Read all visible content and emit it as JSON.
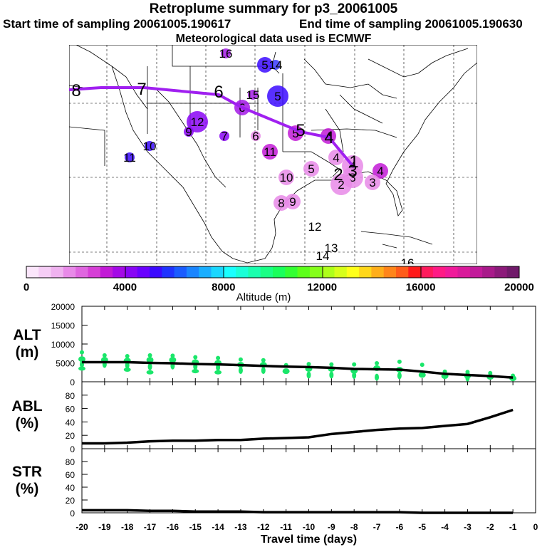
{
  "header": {
    "title": "Retroplume summary for p3_20061005",
    "start_label": "Start time of sampling 20061005.190617",
    "end_label": "End time of sampling 20061005.190630",
    "met_label": "Meteorological data used is ECMWF"
  },
  "colorbar": {
    "label": "Altitude (m)",
    "ticks": [
      "0",
      "4000",
      "8000",
      "12000",
      "16000",
      "20000"
    ],
    "range": [
      0,
      20000
    ],
    "colors": [
      "#fbe6fb",
      "#f5cdf5",
      "#efb2ef",
      "#e88ae8",
      "#df66df",
      "#d63fd6",
      "#c21ad6",
      "#a40ae6",
      "#8805f5",
      "#6a00ff",
      "#3b0aff",
      "#1f33ff",
      "#1a5cff",
      "#1a85ff",
      "#1aaeff",
      "#1ad7ff",
      "#1affff",
      "#1affd7",
      "#1affae",
      "#1aff85",
      "#1aff5c",
      "#33ff33",
      "#5cff1a",
      "#85ff1a",
      "#aeff1a",
      "#d7ff1a",
      "#ffff1a",
      "#ffd71a",
      "#ffae1a",
      "#ff851a",
      "#ff5c1a",
      "#ff1a1a",
      "#ff1a5c",
      "#ff1a85",
      "#f01a9a",
      "#d91a9a",
      "#c21a9a",
      "#a81a8a",
      "#8c1a7a",
      "#701a6a"
    ]
  },
  "map": {
    "track_color": "#a020f0",
    "track_labels": [
      "8",
      "7",
      "6",
      "5",
      "4",
      "3",
      "2",
      "1"
    ],
    "clusters": [
      {
        "label": "16",
        "color": "#a31ae6",
        "r": "s"
      },
      {
        "label": "15",
        "color": "#a31ae6",
        "r": "s"
      },
      {
        "label": "5",
        "color": "#3b0aff",
        "r": "m"
      },
      {
        "label": "14",
        "color": "#3b3bff",
        "r": "s"
      },
      {
        "label": "5",
        "color": "#3b0aff",
        "r": "l"
      },
      {
        "label": "6",
        "color": "#a31ae6",
        "r": "m"
      },
      {
        "label": "12",
        "color": "#8a05f5",
        "r": "l"
      },
      {
        "label": "9",
        "color": "#8a05f5",
        "r": "s"
      },
      {
        "label": "7",
        "color": "#8a05f5",
        "r": "s"
      },
      {
        "label": "6",
        "color": "#e88ae8",
        "r": "s"
      },
      {
        "label": "11",
        "color": "#c21ad6",
        "r": "m"
      },
      {
        "label": "5",
        "color": "#c21ad6",
        "r": "m"
      },
      {
        "label": "4",
        "color": "#c21ad6",
        "r": "m"
      },
      {
        "label": "10",
        "color": "#3b0aff",
        "r": "s"
      },
      {
        "label": "11",
        "color": "#3b0aff",
        "r": "s"
      },
      {
        "label": "4",
        "color": "#e88ae8",
        "r": "m"
      },
      {
        "label": "4",
        "color": "#c21ad6",
        "r": "m"
      },
      {
        "label": "4",
        "color": "#e88ae8",
        "r": "l"
      },
      {
        "label": "3",
        "color": "#e88ae8",
        "r": "l"
      },
      {
        "label": "3",
        "color": "#e88ae8",
        "r": "m"
      },
      {
        "label": "2",
        "color": "#e88ae8",
        "r": "l"
      },
      {
        "label": "10",
        "color": "#e88ae8",
        "r": "m"
      },
      {
        "label": "5",
        "color": "#e88ae8",
        "r": "m"
      },
      {
        "label": "8",
        "color": "#e88ae8",
        "r": "m"
      },
      {
        "label": "9",
        "color": "#e88ae8",
        "r": "m"
      },
      {
        "label": "12",
        "color": "none",
        "r": "s"
      },
      {
        "label": "13",
        "color": "none",
        "r": "s"
      },
      {
        "label": "14",
        "color": "none",
        "r": "s"
      },
      {
        "label": "16",
        "color": "none",
        "r": "s"
      }
    ]
  },
  "chart_data": [
    {
      "type": "line",
      "panel": "ALT",
      "ylabel": "ALT\n(m)",
      "ylabel_lines": [
        "ALT",
        "(m)"
      ],
      "ylim": [
        0,
        20000
      ],
      "yticks": [
        0,
        5000,
        10000,
        15000,
        20000
      ],
      "xlim": [
        -20,
        0
      ],
      "x": [
        -20,
        -19,
        -18,
        -17,
        -16,
        -15,
        -14,
        -13,
        -12,
        -11,
        -10,
        -9,
        -8,
        -7,
        -6,
        -5,
        -4,
        -3,
        -2,
        -1
      ],
      "values": [
        5200,
        5200,
        5200,
        5000,
        4900,
        4700,
        4600,
        4400,
        4200,
        4000,
        3900,
        3700,
        3400,
        3300,
        3200,
        2700,
        2100,
        1800,
        1500,
        1100
      ],
      "scatter": [
        {
          "x": -20,
          "y": [
            7800,
            6000,
            4600,
            3500
          ]
        },
        {
          "x": -19,
          "y": [
            7000,
            5800,
            4600
          ]
        },
        {
          "x": -18,
          "y": [
            6800,
            5600,
            4400,
            3200
          ]
        },
        {
          "x": -17,
          "y": [
            7000,
            5800,
            4000,
            2500
          ]
        },
        {
          "x": -16,
          "y": [
            6900,
            5800,
            4200
          ]
        },
        {
          "x": -15,
          "y": [
            6500,
            5200,
            4000,
            2800
          ]
        },
        {
          "x": -14,
          "y": [
            6300,
            5000,
            3800,
            2500
          ]
        },
        {
          "x": -13,
          "y": [
            5900,
            4500,
            3000
          ]
        },
        {
          "x": -12,
          "y": [
            5700,
            4500,
            3000
          ]
        },
        {
          "x": -11,
          "y": [
            4400,
            2800
          ]
        },
        {
          "x": -10,
          "y": [
            4700,
            3400,
            1800
          ]
        },
        {
          "x": -9,
          "y": [
            4600,
            3400,
            1800
          ]
        },
        {
          "x": -8,
          "y": [
            4600,
            2900,
            1700
          ]
        },
        {
          "x": -7,
          "y": [
            4900,
            3600,
            1200
          ]
        },
        {
          "x": -6,
          "y": [
            5300,
            3200,
            1600
          ]
        },
        {
          "x": -5,
          "y": [
            4500,
            1800
          ]
        },
        {
          "x": -4,
          "y": [
            2700,
            1500
          ]
        },
        {
          "x": -3,
          "y": [
            2600,
            1600,
            1000
          ]
        },
        {
          "x": -2,
          "y": [
            2300,
            1300
          ]
        },
        {
          "x": -1,
          "y": [
            1600,
            900
          ]
        }
      ]
    },
    {
      "type": "line",
      "panel": "ABL",
      "ylabel": "ABL\n(%)",
      "ylabel_lines": [
        "ABL",
        "(%)"
      ],
      "ylim": [
        0,
        100
      ],
      "yticks": [
        0,
        20,
        40,
        60,
        80
      ],
      "xlim": [
        -20,
        0
      ],
      "x": [
        -20,
        -19,
        -18,
        -17,
        -16,
        -15,
        -14,
        -13,
        -12,
        -11,
        -10,
        -9,
        -8,
        -7,
        -6,
        -5,
        -4,
        -3,
        -2,
        -1
      ],
      "values": [
        8,
        8,
        9,
        11,
        12,
        12,
        13,
        13,
        15,
        16,
        17,
        22,
        25,
        28,
        30,
        31,
        34,
        37,
        47,
        58
      ]
    },
    {
      "type": "line",
      "panel": "STR",
      "ylabel": "STR\n(%)",
      "ylabel_lines": [
        "STR",
        "(%)"
      ],
      "ylim": [
        0,
        100
      ],
      "yticks": [
        0,
        20,
        40,
        60,
        80
      ],
      "xlim": [
        -20,
        0
      ],
      "xlabel": "Travel time (days)",
      "xticks": [
        "-20",
        "-19",
        "-18",
        "-17",
        "-16",
        "-15",
        "-14",
        "-13",
        "-12",
        "-11",
        "-10",
        "-9",
        "-8",
        "-7",
        "-6",
        "-5",
        "-4",
        "-3",
        "-2",
        "-1",
        "0"
      ],
      "x": [
        -20,
        -19,
        -18,
        -17,
        -16,
        -15,
        -14,
        -13,
        -12,
        -11,
        -10,
        -9,
        -8,
        -7,
        -6,
        -5,
        -4,
        -3,
        -2,
        -1
      ],
      "values": [
        4,
        4,
        4,
        3,
        3,
        2,
        2,
        2,
        1,
        1,
        1,
        1,
        1,
        1,
        1,
        0,
        0,
        0,
        0,
        0
      ]
    }
  ]
}
